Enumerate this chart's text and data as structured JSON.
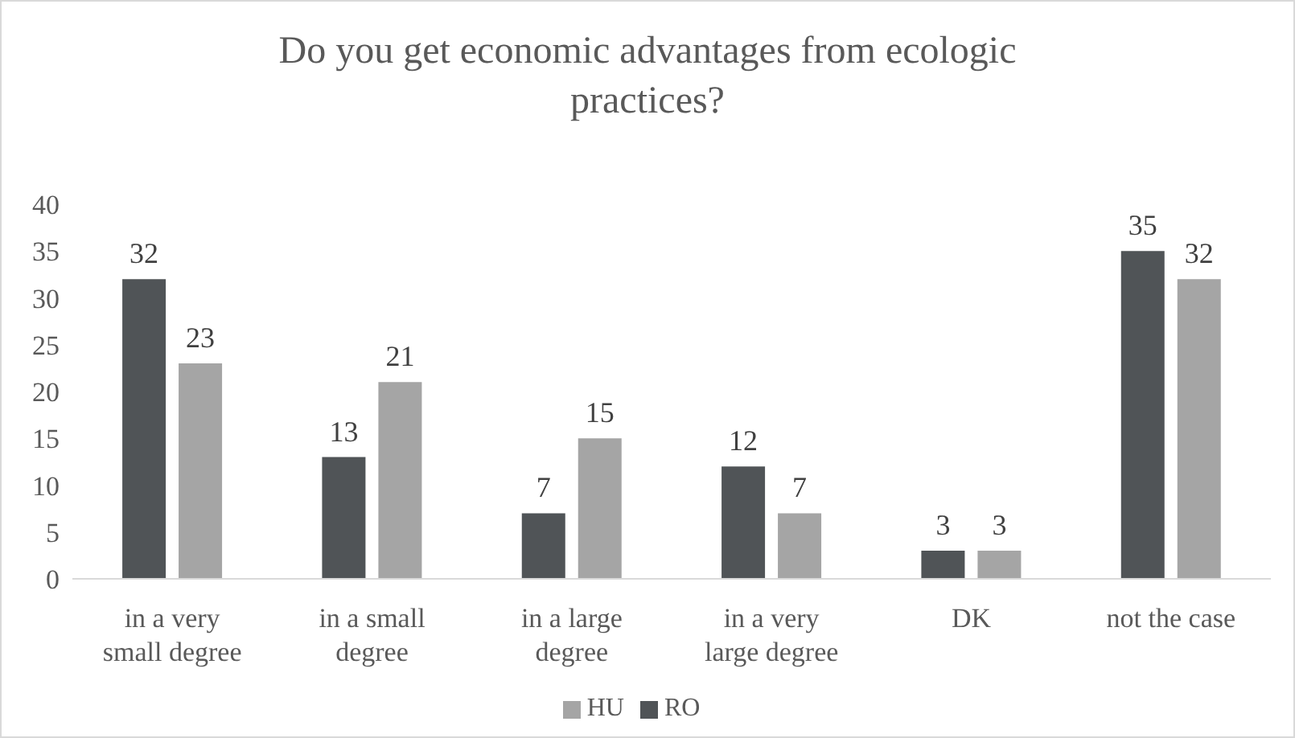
{
  "chart_data": {
    "type": "bar",
    "title": "Do you get economic advantages from ecologic practices?",
    "categories": [
      "in a very small degree",
      "in a small degree",
      "in a large degree",
      "in a very large degree",
      "DK",
      "not the case"
    ],
    "series": [
      {
        "name": "RO",
        "color": "#505457",
        "values": [
          32,
          13,
          7,
          12,
          3,
          35
        ]
      },
      {
        "name": "HU",
        "color": "#a5a5a5",
        "values": [
          23,
          21,
          15,
          7,
          3,
          32
        ]
      }
    ],
    "ylim": [
      0,
      40
    ],
    "yticks": [
      0,
      5,
      10,
      15,
      20,
      25,
      30,
      35,
      40
    ],
    "grid": false,
    "legend": "bottom",
    "data_labels": true
  }
}
